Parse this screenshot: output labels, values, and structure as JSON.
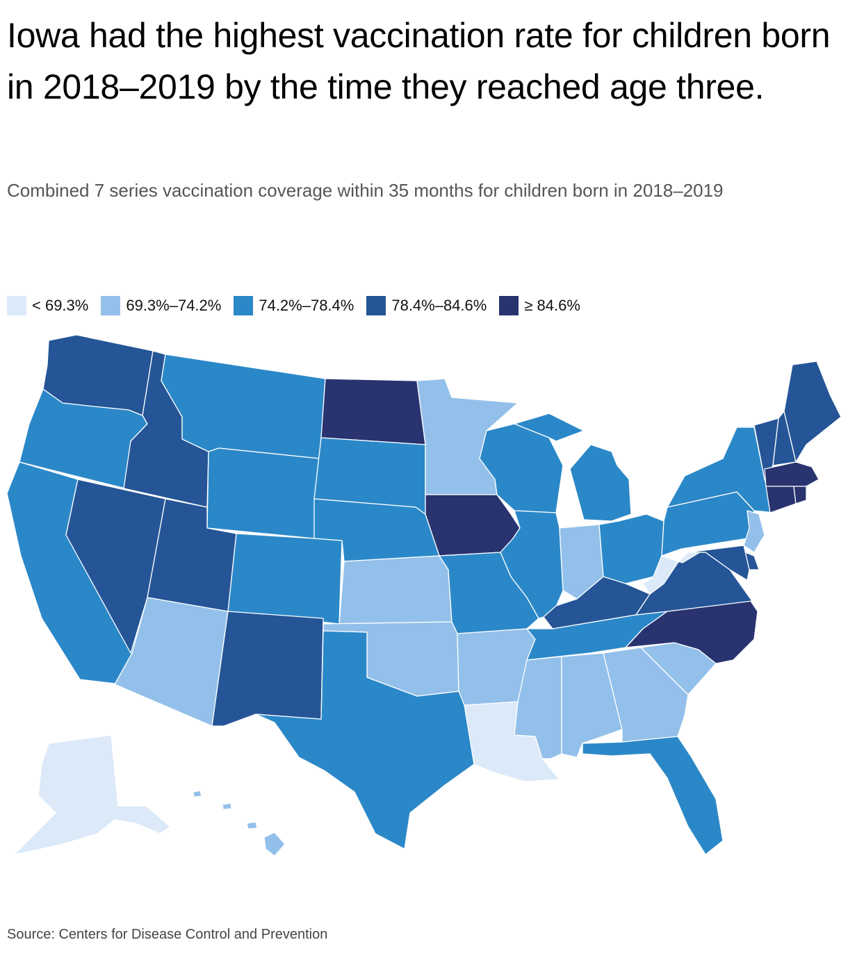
{
  "title": "Iowa had the highest vaccination rate for children born in 2018–2019 by the time they reached age three.",
  "subtitle": "Combined 7 series vaccination coverage within 35 months for children born in 2018–2019",
  "legend": [
    {
      "label": "< 69.3%",
      "color": "#dce9f8"
    },
    {
      "label": "69.3%–74.2%",
      "color": "#93c0ea"
    },
    {
      "label": "74.2%–78.4%",
      "color": "#2b88c8"
    },
    {
      "label": "78.4%–84.6%",
      "color": "#255597"
    },
    {
      "label": "≥ 84.6%",
      "color": "#283370"
    }
  ],
  "source": "Source: Centers for Disease Control and Prevention",
  "map_data": {
    "unit": "vaccination coverage bin",
    "states": [
      {
        "name": "Washington",
        "bin": 3
      },
      {
        "name": "Oregon",
        "bin": 2
      },
      {
        "name": "California",
        "bin": 2
      },
      {
        "name": "Idaho",
        "bin": 3
      },
      {
        "name": "Nevada",
        "bin": 3
      },
      {
        "name": "Montana",
        "bin": 2
      },
      {
        "name": "Wyoming",
        "bin": 2
      },
      {
        "name": "Utah",
        "bin": 3
      },
      {
        "name": "Arizona",
        "bin": 1
      },
      {
        "name": "Colorado",
        "bin": 2
      },
      {
        "name": "New Mexico",
        "bin": 3
      },
      {
        "name": "North Dakota",
        "bin": 4
      },
      {
        "name": "South Dakota",
        "bin": 2
      },
      {
        "name": "Nebraska",
        "bin": 2
      },
      {
        "name": "Kansas",
        "bin": 1
      },
      {
        "name": "Oklahoma",
        "bin": 1
      },
      {
        "name": "Texas",
        "bin": 2
      },
      {
        "name": "Minnesota",
        "bin": 1
      },
      {
        "name": "Iowa",
        "bin": 4
      },
      {
        "name": "Missouri",
        "bin": 2
      },
      {
        "name": "Arkansas",
        "bin": 1
      },
      {
        "name": "Louisiana",
        "bin": 0
      },
      {
        "name": "Wisconsin",
        "bin": 2
      },
      {
        "name": "Illinois",
        "bin": 2
      },
      {
        "name": "Michigan",
        "bin": 2
      },
      {
        "name": "Indiana",
        "bin": 1
      },
      {
        "name": "Ohio",
        "bin": 2
      },
      {
        "name": "Kentucky",
        "bin": 3
      },
      {
        "name": "Tennessee",
        "bin": 2
      },
      {
        "name": "Mississippi",
        "bin": 1
      },
      {
        "name": "Alabama",
        "bin": 1
      },
      {
        "name": "Georgia",
        "bin": 1
      },
      {
        "name": "Florida",
        "bin": 2
      },
      {
        "name": "South Carolina",
        "bin": 1
      },
      {
        "name": "North Carolina",
        "bin": 4
      },
      {
        "name": "Virginia",
        "bin": 3
      },
      {
        "name": "West Virginia",
        "bin": 0
      },
      {
        "name": "Pennsylvania",
        "bin": 2
      },
      {
        "name": "New York",
        "bin": 2
      },
      {
        "name": "New Jersey",
        "bin": 1
      },
      {
        "name": "Delaware",
        "bin": 3
      },
      {
        "name": "Maryland",
        "bin": 3
      },
      {
        "name": "Vermont",
        "bin": 3
      },
      {
        "name": "New Hampshire",
        "bin": 3
      },
      {
        "name": "Maine",
        "bin": 3
      },
      {
        "name": "Massachusetts",
        "bin": 4
      },
      {
        "name": "Connecticut",
        "bin": 4
      },
      {
        "name": "Rhode Island",
        "bin": 4
      },
      {
        "name": "Alaska",
        "bin": 0
      },
      {
        "name": "Hawaii",
        "bin": 1
      }
    ]
  }
}
